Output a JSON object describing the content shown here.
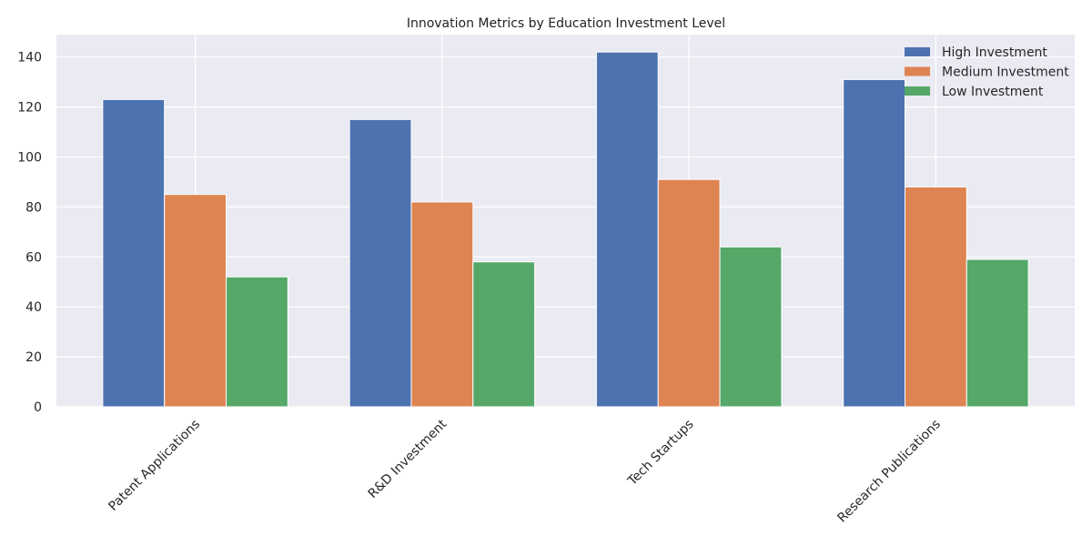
{
  "chart_data": {
    "type": "bar",
    "title": "Innovation Metrics by Education Investment Level",
    "xlabel": "",
    "ylabel": "",
    "categories": [
      "Patent Applications",
      "R&D Investment",
      "Tech Startups",
      "Research Publications"
    ],
    "series": [
      {
        "name": "High Investment",
        "values": [
          123,
          115,
          142,
          131
        ],
        "color": "#4c72b0"
      },
      {
        "name": "Medium Investment",
        "values": [
          85,
          82,
          91,
          88
        ],
        "color": "#dd8452"
      },
      {
        "name": "Low Investment",
        "values": [
          52,
          58,
          64,
          59
        ],
        "color": "#55a868"
      }
    ],
    "ylim": [
      0,
      149
    ],
    "yticks": [
      0,
      20,
      40,
      60,
      80,
      100,
      120,
      140
    ],
    "grid": true,
    "background_color": "#eaeaf2",
    "legend_position": "top-right",
    "xtick_rotation": 45
  }
}
